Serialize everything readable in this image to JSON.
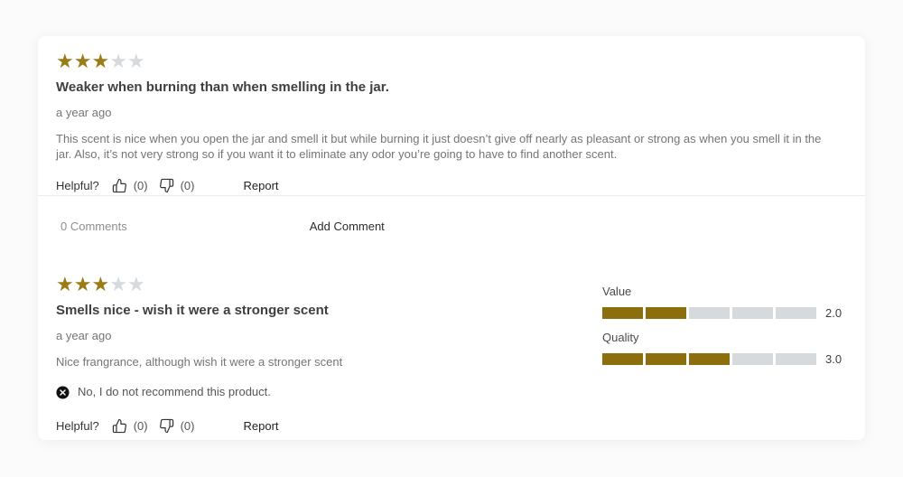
{
  "colors": {
    "star_gold": "#9a7b16",
    "bar_gold": "#8d6e0c",
    "empty_gray": "#d6dadd",
    "card_bg": "#ffffff",
    "page_bg": "#fbfbfb"
  },
  "labels": {
    "helpful": "Helpful?",
    "report": "Report",
    "add_comment": "Add Comment"
  },
  "reviews": [
    {
      "rating": 3,
      "max_rating": 5,
      "title": "Weaker when burning than when smelling in the jar.",
      "date": "a year ago",
      "body": "This scent is nice when you open the jar and smell it but while burning it just doesn’t give off nearly as pleasant or strong as when you smell it in the jar. Also, it’s not very strong so if you want it to eliminate any odor you’re going to have to find another scent.",
      "thumbs_up_count": "(0)",
      "thumbs_down_count": "(0)",
      "comments_label": "0 Comments"
    },
    {
      "rating": 3,
      "max_rating": 5,
      "title": "Smells nice - wish it were a stronger scent",
      "date": "a year ago",
      "body": "Nice frangrance, although wish it were a stronger scent",
      "not_recommended": "No, I do not recommend this product.",
      "thumbs_up_count": "(0)",
      "thumbs_down_count": "(0)",
      "secondary_ratings": [
        {
          "label": "Value",
          "value": "2.0",
          "filled": 2,
          "total": 5
        },
        {
          "label": "Quality",
          "value": "3.0",
          "filled": 3,
          "total": 5
        }
      ]
    }
  ]
}
